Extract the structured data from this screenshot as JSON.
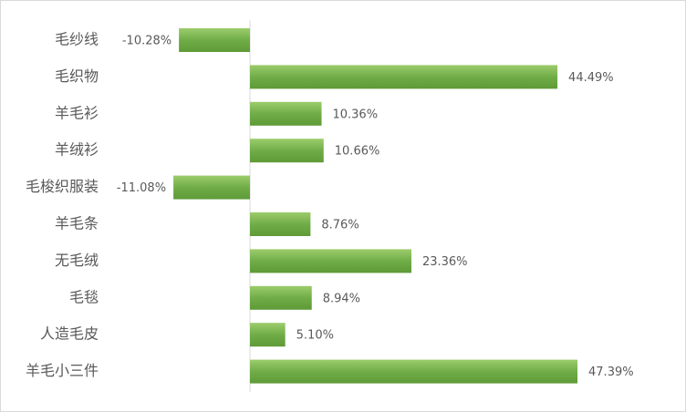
{
  "chart_data": {
    "type": "bar",
    "orientation": "horizontal",
    "categories": [
      "毛纱线",
      "毛织物",
      "羊毛衫",
      "羊绒衫",
      "毛梭织服装",
      "羊毛条",
      "无毛绒",
      "毛毯",
      "人造毛皮",
      "羊毛小三件"
    ],
    "values": [
      -10.28,
      44.49,
      10.36,
      10.66,
      -11.08,
      8.76,
      23.36,
      8.94,
      5.1,
      47.39
    ],
    "value_labels": [
      "-10.28%",
      "44.49%",
      "10.36%",
      "10.66%",
      "-11.08%",
      "8.76%",
      "23.36%",
      "8.94%",
      "5.10%",
      "47.39%"
    ],
    "color": "#70ad47",
    "xlim": [
      -20,
      50
    ]
  }
}
